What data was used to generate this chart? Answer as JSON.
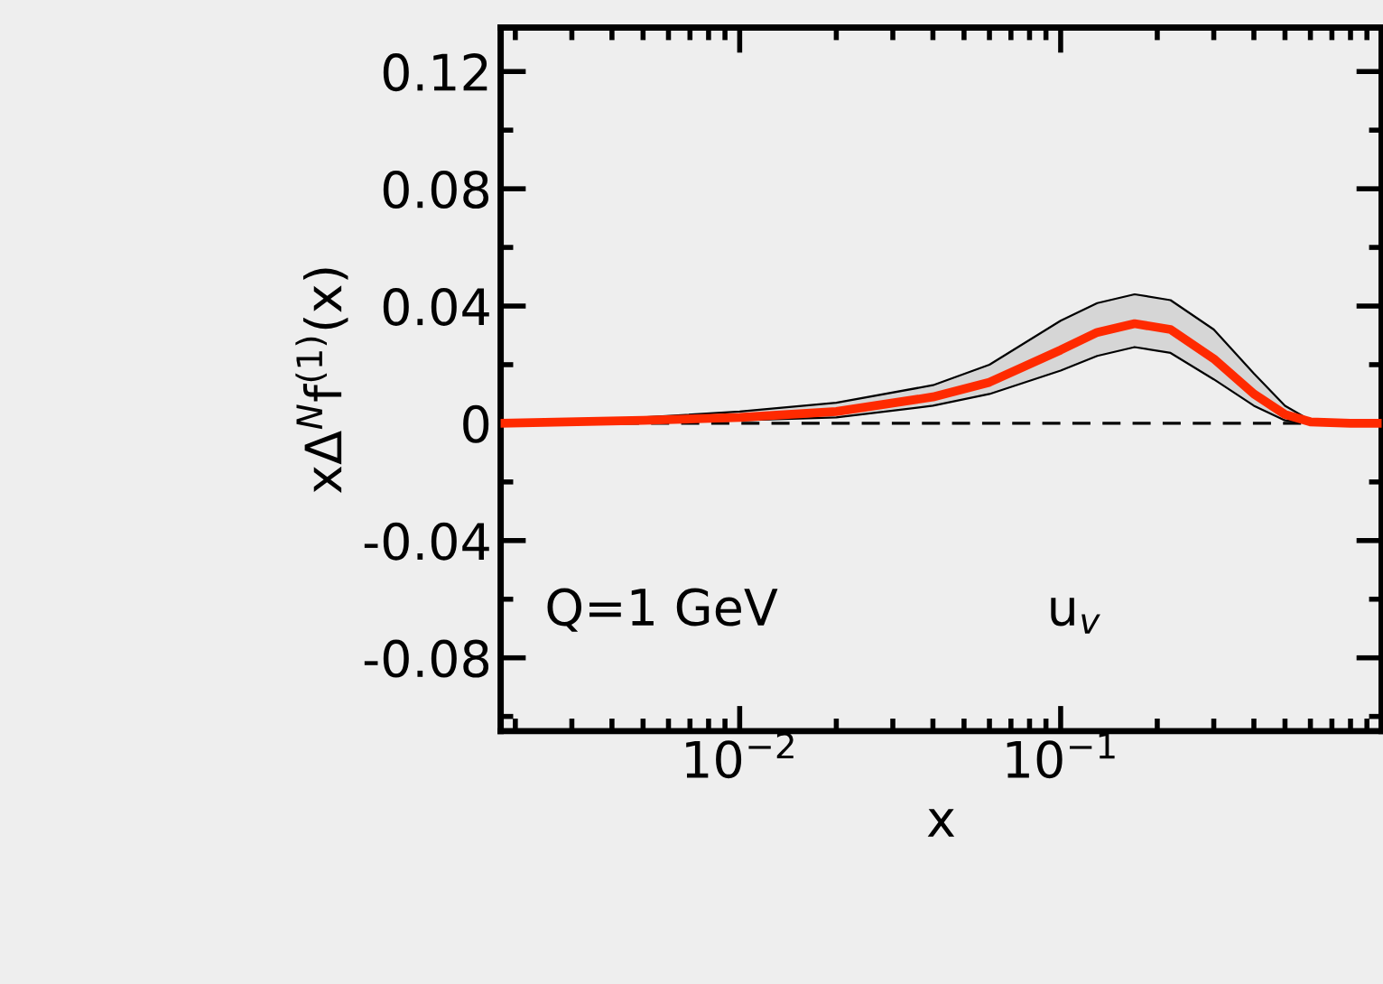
{
  "chart_data": {
    "type": "line",
    "xlabel": "x",
    "ylabel": "xΔ$^{N}$f$^{(1)}$(x)",
    "log": "x",
    "xlim": [
      0.0018,
      1
    ],
    "ylim": [
      -0.105,
      0.135
    ],
    "xticks": [
      {
        "value": 0.01,
        "label": "10$^{−2}$"
      },
      {
        "value": 0.1,
        "label": "10$^{−1}$"
      }
    ],
    "yticks": [
      {
        "value": -0.08,
        "label": "-0.08"
      },
      {
        "value": -0.04,
        "label": "-0.04"
      },
      0,
      0.04,
      0.08,
      0.12
    ],
    "x": [
      0.0018,
      0.005,
      0.01,
      0.02,
      0.04,
      0.06,
      0.1,
      0.13,
      0.17,
      0.22,
      0.3,
      0.4,
      0.5,
      0.6,
      0.8,
      1
    ],
    "series": [
      {
        "color": "#ff2a00",
        "values": [
          0,
          0.001,
          0.002,
          0.004,
          0.009,
          0.014,
          0.025,
          0.031,
          0.034,
          0.032,
          0.022,
          0.01,
          0.003,
          0.0005,
          0,
          0
        ],
        "lower": [
          0,
          0.0005,
          0.001,
          0.002,
          0.006,
          0.01,
          0.018,
          0.023,
          0.026,
          0.024,
          0.015,
          0.006,
          0.001,
          0,
          0,
          0
        ],
        "upper": [
          0,
          0.002,
          0.004,
          0.007,
          0.013,
          0.02,
          0.035,
          0.041,
          0.044,
          0.042,
          0.032,
          0.017,
          0.006,
          0.001,
          0,
          0
        ]
      }
    ],
    "ref_lines": [
      {
        "axis": "y",
        "value": 0,
        "color": "#000000",
        "line_style": "dashed"
      }
    ],
    "annotations": [
      {
        "text": "Q=1 GeV"
      },
      {
        "text": "u$_{v}$"
      }
    ],
    "grid": false
  }
}
